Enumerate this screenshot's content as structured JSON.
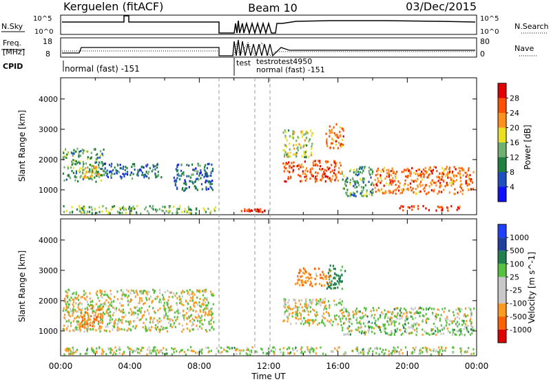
{
  "header": {
    "title_left": "Kerguelen (fitACF)",
    "title_center": "Beam 10",
    "date": "03/Dec/2015"
  },
  "noise_panel": {
    "left_label": "N.Sky",
    "right_label": "N.Search",
    "left_ticks": [
      "10^5",
      "10^0"
    ],
    "right_ticks": [
      "10^5",
      "10^0"
    ]
  },
  "freq_panel": {
    "left_label_line1": "Freq.",
    "left_label_line2": "[MHz]",
    "right_label": "Nave",
    "left_ticks": [
      "18",
      "8"
    ],
    "right_ticks": [
      "80",
      "0"
    ]
  },
  "cpid": {
    "label": "CPID",
    "mode_main": "normal (fast) -151",
    "mode_test": "test",
    "mode_cluster": "testrotest4950",
    "mode_late": "normal (fast) -151"
  },
  "time_axis": {
    "label": "Time UT",
    "ticks": [
      "00:00",
      "04:00",
      "08:00",
      "12:00",
      "16:00",
      "20:00",
      "00:00"
    ]
  },
  "power_panel": {
    "ylabel": "Slant Range [km]",
    "yticks": [
      "1000",
      "2000",
      "3000",
      "4000"
    ],
    "colorbar_title": "Power [dB]",
    "colorbar_ticks": [
      "4",
      "8",
      "12",
      "16",
      "20",
      "24",
      "28"
    ],
    "colors": [
      "#1010ff",
      "#2050c0",
      "#208040",
      "#70b070",
      "#e8e020",
      "#ff9020",
      "#ff5000",
      "#e00000"
    ]
  },
  "velocity_panel": {
    "ylabel": "Slant Range [km]",
    "yticks": [
      "1000",
      "2000",
      "3000",
      "4000"
    ],
    "colorbar_title": "Velocity [m s^-1]",
    "colorbar_ticks": [
      "-1000",
      "-500",
      "-100",
      "-25",
      "25",
      "100",
      "500",
      "1000"
    ],
    "colors": [
      "#e00000",
      "#ff6000",
      "#ff9a20",
      "#c8c8c8",
      "#c8c8c8",
      "#58c040",
      "#208050",
      "#2040a0",
      "#2040ff"
    ]
  },
  "chart_data": [
    {
      "type": "heatmap",
      "title": "Power [dB]",
      "xlabel": "Time UT",
      "ylabel": "Slant Range [km]",
      "x_range_hours": [
        0,
        24
      ],
      "ylim_km": [
        180,
        4700
      ],
      "colorbar_range_db": [
        0,
        32
      ],
      "regions": [
        {
          "t_start": 0.1,
          "t_end": 2.5,
          "r_min": 1300,
          "r_max": 2400,
          "value_db": 12
        },
        {
          "t_start": 1.0,
          "t_end": 2.2,
          "r_min": 1400,
          "r_max": 1800,
          "value_db": 20
        },
        {
          "t_start": 2.5,
          "t_end": 5.8,
          "r_min": 1400,
          "r_max": 1900,
          "value_db": 8
        },
        {
          "t_start": 6.5,
          "t_end": 8.8,
          "r_min": 1000,
          "r_max": 1900,
          "value_db": 8
        },
        {
          "t_start": 0.1,
          "t_end": 8.9,
          "r_min": 250,
          "r_max": 500,
          "value_db": 14
        },
        {
          "t_start": 12.8,
          "t_end": 16.2,
          "r_min": 1300,
          "r_max": 2000,
          "value_db": 26
        },
        {
          "t_start": 12.8,
          "t_end": 14.5,
          "r_min": 2100,
          "r_max": 3000,
          "value_db": 16
        },
        {
          "t_start": 15.2,
          "t_end": 16.3,
          "r_min": 2400,
          "r_max": 3200,
          "value_db": 24
        },
        {
          "t_start": 16.2,
          "t_end": 18.0,
          "r_min": 800,
          "r_max": 1800,
          "value_db": 12
        },
        {
          "t_start": 18.0,
          "t_end": 23.8,
          "r_min": 900,
          "r_max": 1800,
          "value_db": 24
        },
        {
          "t_start": 19.5,
          "t_end": 23.0,
          "r_min": 350,
          "r_max": 500,
          "value_db": 28
        },
        {
          "t_start": 10.4,
          "t_end": 11.8,
          "r_min": 300,
          "r_max": 400,
          "value_db": 28
        }
      ]
    },
    {
      "type": "heatmap",
      "title": "Velocity [m s^-1]",
      "xlabel": "Time UT",
      "ylabel": "Slant Range [km]",
      "x_range_hours": [
        0,
        24
      ],
      "ylim_km": [
        180,
        4700
      ],
      "colorbar_range_ms": [
        -1000,
        1000
      ],
      "regions": [
        {
          "t_start": 0.1,
          "t_end": 8.8,
          "r_min": 1000,
          "r_max": 2400,
          "value_ms": 0
        },
        {
          "t_start": 1.0,
          "t_end": 2.4,
          "r_min": 1100,
          "r_max": 1800,
          "value_ms": -300
        },
        {
          "t_start": 12.8,
          "t_end": 16.3,
          "r_min": 1200,
          "r_max": 2100,
          "value_ms": 0
        },
        {
          "t_start": 13.5,
          "t_end": 15.5,
          "r_min": 2500,
          "r_max": 3100,
          "value_ms": -300
        },
        {
          "t_start": 15.3,
          "t_end": 16.4,
          "r_min": 2400,
          "r_max": 3200,
          "value_ms": 400
        },
        {
          "t_start": 16.2,
          "t_end": 23.8,
          "r_min": 900,
          "r_max": 1800,
          "value_ms": 100
        },
        {
          "t_start": 0.1,
          "t_end": 23.8,
          "r_min": 250,
          "r_max": 500,
          "value_ms": 60
        }
      ]
    }
  ]
}
